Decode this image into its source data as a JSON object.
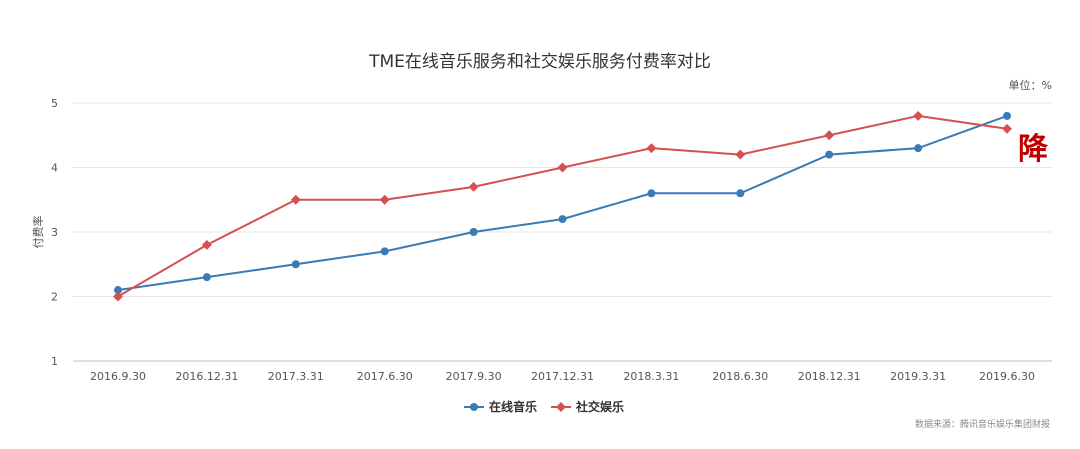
{
  "chart_data": {
    "type": "line",
    "title": "TME在线音乐服务和社交娱乐服务付费率对比",
    "unit": "单位：%",
    "xlabel": "",
    "ylabel": "付费率",
    "ylim": [
      1,
      5
    ],
    "yticks": [
      "1",
      "2",
      "3",
      "4",
      "5"
    ],
    "grid": true,
    "legend_position": "bottom-center",
    "categories": [
      "2016.9.30",
      "2016.12.31",
      "2017.3.31",
      "2017.6.30",
      "2017.9.30",
      "2017.12.31",
      "2018.3.31",
      "2018.6.30",
      "2018.12.31",
      "2019.3.31",
      "2019.6.30"
    ],
    "series": [
      {
        "name": "在线音乐",
        "color": "#3a7ab5",
        "marker": "circle",
        "values": [
          2.1,
          2.3,
          2.5,
          2.7,
          3.0,
          3.2,
          3.6,
          3.6,
          4.2,
          4.3,
          4.8
        ]
      },
      {
        "name": "社交娱乐",
        "color": "#d55050",
        "marker": "diamond",
        "values": [
          2.0,
          2.8,
          3.5,
          3.5,
          3.7,
          4.0,
          4.3,
          4.2,
          4.5,
          4.8,
          4.6
        ]
      }
    ],
    "annotation": "降",
    "annotation_color": "#c00000",
    "source": "数据来源：腾讯音乐娱乐集团财报"
  }
}
